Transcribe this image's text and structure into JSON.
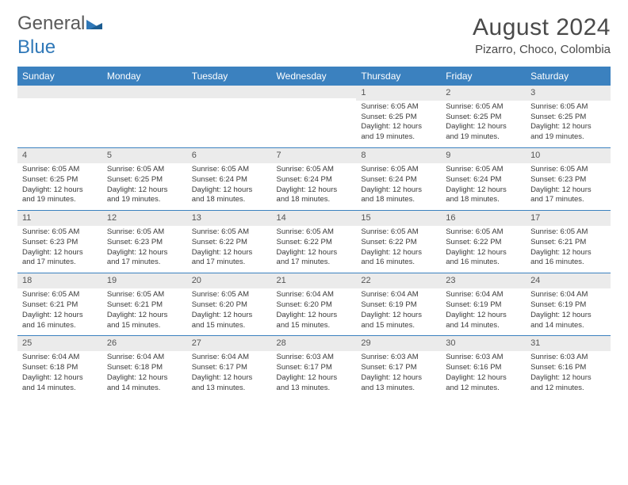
{
  "logo": {
    "part1": "General",
    "part2": "Blue"
  },
  "title": "August 2024",
  "location": "Pizarro, Choco, Colombia",
  "colors": {
    "header_bg": "#3b81bf",
    "header_text": "#ffffff",
    "daynum_bg": "#ebebeb",
    "border": "#3b81bf",
    "text": "#3a3a3a",
    "logo_gray": "#5a5a5a",
    "logo_blue": "#2f78b8"
  },
  "day_headers": [
    "Sunday",
    "Monday",
    "Tuesday",
    "Wednesday",
    "Thursday",
    "Friday",
    "Saturday"
  ],
  "weeks": [
    [
      {
        "n": "",
        "lines": []
      },
      {
        "n": "",
        "lines": []
      },
      {
        "n": "",
        "lines": []
      },
      {
        "n": "",
        "lines": []
      },
      {
        "n": "1",
        "lines": [
          "Sunrise: 6:05 AM",
          "Sunset: 6:25 PM",
          "Daylight: 12 hours and 19 minutes."
        ]
      },
      {
        "n": "2",
        "lines": [
          "Sunrise: 6:05 AM",
          "Sunset: 6:25 PM",
          "Daylight: 12 hours and 19 minutes."
        ]
      },
      {
        "n": "3",
        "lines": [
          "Sunrise: 6:05 AM",
          "Sunset: 6:25 PM",
          "Daylight: 12 hours and 19 minutes."
        ]
      }
    ],
    [
      {
        "n": "4",
        "lines": [
          "Sunrise: 6:05 AM",
          "Sunset: 6:25 PM",
          "Daylight: 12 hours and 19 minutes."
        ]
      },
      {
        "n": "5",
        "lines": [
          "Sunrise: 6:05 AM",
          "Sunset: 6:25 PM",
          "Daylight: 12 hours and 19 minutes."
        ]
      },
      {
        "n": "6",
        "lines": [
          "Sunrise: 6:05 AM",
          "Sunset: 6:24 PM",
          "Daylight: 12 hours and 18 minutes."
        ]
      },
      {
        "n": "7",
        "lines": [
          "Sunrise: 6:05 AM",
          "Sunset: 6:24 PM",
          "Daylight: 12 hours and 18 minutes."
        ]
      },
      {
        "n": "8",
        "lines": [
          "Sunrise: 6:05 AM",
          "Sunset: 6:24 PM",
          "Daylight: 12 hours and 18 minutes."
        ]
      },
      {
        "n": "9",
        "lines": [
          "Sunrise: 6:05 AM",
          "Sunset: 6:24 PM",
          "Daylight: 12 hours and 18 minutes."
        ]
      },
      {
        "n": "10",
        "lines": [
          "Sunrise: 6:05 AM",
          "Sunset: 6:23 PM",
          "Daylight: 12 hours and 17 minutes."
        ]
      }
    ],
    [
      {
        "n": "11",
        "lines": [
          "Sunrise: 6:05 AM",
          "Sunset: 6:23 PM",
          "Daylight: 12 hours and 17 minutes."
        ]
      },
      {
        "n": "12",
        "lines": [
          "Sunrise: 6:05 AM",
          "Sunset: 6:23 PM",
          "Daylight: 12 hours and 17 minutes."
        ]
      },
      {
        "n": "13",
        "lines": [
          "Sunrise: 6:05 AM",
          "Sunset: 6:22 PM",
          "Daylight: 12 hours and 17 minutes."
        ]
      },
      {
        "n": "14",
        "lines": [
          "Sunrise: 6:05 AM",
          "Sunset: 6:22 PM",
          "Daylight: 12 hours and 17 minutes."
        ]
      },
      {
        "n": "15",
        "lines": [
          "Sunrise: 6:05 AM",
          "Sunset: 6:22 PM",
          "Daylight: 12 hours and 16 minutes."
        ]
      },
      {
        "n": "16",
        "lines": [
          "Sunrise: 6:05 AM",
          "Sunset: 6:22 PM",
          "Daylight: 12 hours and 16 minutes."
        ]
      },
      {
        "n": "17",
        "lines": [
          "Sunrise: 6:05 AM",
          "Sunset: 6:21 PM",
          "Daylight: 12 hours and 16 minutes."
        ]
      }
    ],
    [
      {
        "n": "18",
        "lines": [
          "Sunrise: 6:05 AM",
          "Sunset: 6:21 PM",
          "Daylight: 12 hours and 16 minutes."
        ]
      },
      {
        "n": "19",
        "lines": [
          "Sunrise: 6:05 AM",
          "Sunset: 6:21 PM",
          "Daylight: 12 hours and 15 minutes."
        ]
      },
      {
        "n": "20",
        "lines": [
          "Sunrise: 6:05 AM",
          "Sunset: 6:20 PM",
          "Daylight: 12 hours and 15 minutes."
        ]
      },
      {
        "n": "21",
        "lines": [
          "Sunrise: 6:04 AM",
          "Sunset: 6:20 PM",
          "Daylight: 12 hours and 15 minutes."
        ]
      },
      {
        "n": "22",
        "lines": [
          "Sunrise: 6:04 AM",
          "Sunset: 6:19 PM",
          "Daylight: 12 hours and 15 minutes."
        ]
      },
      {
        "n": "23",
        "lines": [
          "Sunrise: 6:04 AM",
          "Sunset: 6:19 PM",
          "Daylight: 12 hours and 14 minutes."
        ]
      },
      {
        "n": "24",
        "lines": [
          "Sunrise: 6:04 AM",
          "Sunset: 6:19 PM",
          "Daylight: 12 hours and 14 minutes."
        ]
      }
    ],
    [
      {
        "n": "25",
        "lines": [
          "Sunrise: 6:04 AM",
          "Sunset: 6:18 PM",
          "Daylight: 12 hours and 14 minutes."
        ]
      },
      {
        "n": "26",
        "lines": [
          "Sunrise: 6:04 AM",
          "Sunset: 6:18 PM",
          "Daylight: 12 hours and 14 minutes."
        ]
      },
      {
        "n": "27",
        "lines": [
          "Sunrise: 6:04 AM",
          "Sunset: 6:17 PM",
          "Daylight: 12 hours and 13 minutes."
        ]
      },
      {
        "n": "28",
        "lines": [
          "Sunrise: 6:03 AM",
          "Sunset: 6:17 PM",
          "Daylight: 12 hours and 13 minutes."
        ]
      },
      {
        "n": "29",
        "lines": [
          "Sunrise: 6:03 AM",
          "Sunset: 6:17 PM",
          "Daylight: 12 hours and 13 minutes."
        ]
      },
      {
        "n": "30",
        "lines": [
          "Sunrise: 6:03 AM",
          "Sunset: 6:16 PM",
          "Daylight: 12 hours and 12 minutes."
        ]
      },
      {
        "n": "31",
        "lines": [
          "Sunrise: 6:03 AM",
          "Sunset: 6:16 PM",
          "Daylight: 12 hours and 12 minutes."
        ]
      }
    ]
  ]
}
